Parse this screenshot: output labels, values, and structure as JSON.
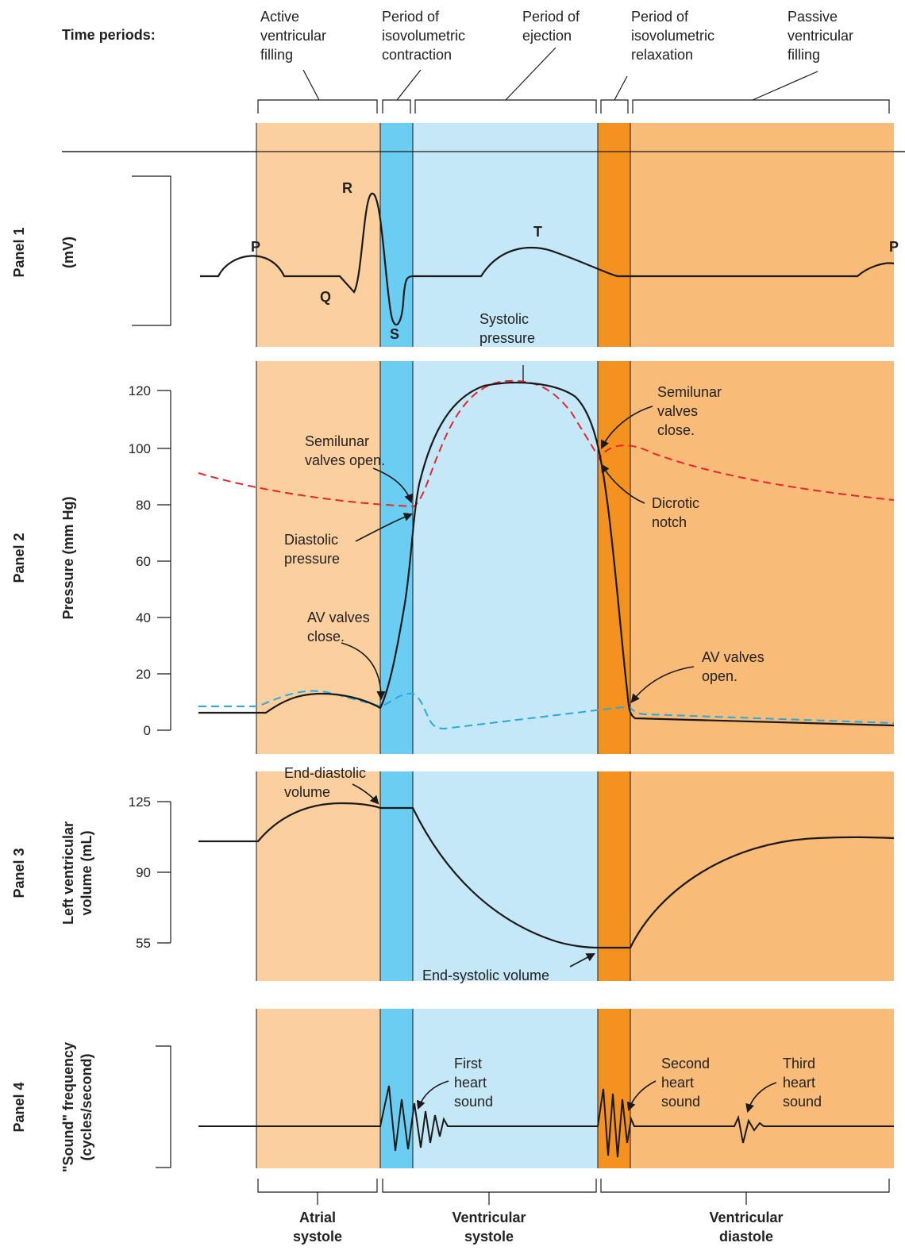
{
  "time_periods_label": "Time periods:",
  "colors": {
    "atrial_fill": "#fcd09e",
    "ivc_fill": "#6ccdf3",
    "ejection_fill": "#c5e8f8",
    "ivr_fill": "#f4921f",
    "diastole_fill": "#f9bb78",
    "curve": "#1a1a1a",
    "aortic_pressure": "#e8252c",
    "atrial_pressure": "#29a8e0"
  },
  "periods": [
    {
      "label": [
        "Active",
        "ventricular",
        "filling"
      ]
    },
    {
      "label": [
        "Period of",
        "isovolumetric",
        "contraction"
      ]
    },
    {
      "label": [
        "Period of",
        "ejection"
      ]
    },
    {
      "label": [
        "Period of",
        "isovolumetric",
        "relaxation"
      ]
    },
    {
      "label": [
        "Passive",
        "ventricular",
        "filling"
      ]
    }
  ],
  "panels": [
    {
      "name": "Panel 1",
      "ylabel": [
        "(mV)"
      ]
    },
    {
      "name": "Panel 2",
      "ylabel": [
        "Pressure (mm Hg)"
      ]
    },
    {
      "name": "Panel 3",
      "ylabel": [
        "Left ventricular",
        "volume (mL)"
      ]
    },
    {
      "name": "Panel 4",
      "ylabel": [
        "\"Sound\" frequency",
        "(cycles/second)"
      ]
    }
  ],
  "ecg_labels": {
    "p": "P",
    "q": "Q",
    "r": "R",
    "s": "S",
    "t": "T",
    "p2": "P"
  },
  "pressure_ticks": [
    "0",
    "20",
    "40",
    "60",
    "80",
    "100",
    "120"
  ],
  "volume_ticks": [
    "55",
    "90",
    "125"
  ],
  "annotations": {
    "systolic_pressure": [
      "Systolic",
      "pressure"
    ],
    "semilunar_open": [
      "Semilunar",
      "valves open."
    ],
    "diastolic_pressure": [
      "Diastolic",
      "pressure"
    ],
    "av_close": [
      "AV valves",
      "close."
    ],
    "semilunar_close": [
      "Semilunar",
      "valves",
      "close."
    ],
    "dicrotic_notch": [
      "Dicrotic",
      "notch"
    ],
    "av_open": [
      "AV valves",
      "open."
    ],
    "end_diastolic": [
      "End-diastolic",
      "volume"
    ],
    "end_systolic": "End-systolic volume",
    "first_sound": [
      "First",
      "heart",
      "sound"
    ],
    "second_sound": [
      "Second",
      "heart",
      "sound"
    ],
    "third_sound": [
      "Third",
      "heart",
      "sound"
    ]
  },
  "phases": [
    {
      "label": [
        "Atrial",
        "systole"
      ]
    },
    {
      "label": [
        "Ventricular",
        "systole"
      ]
    },
    {
      "label": [
        "Ventricular",
        "diastole"
      ]
    }
  ]
}
